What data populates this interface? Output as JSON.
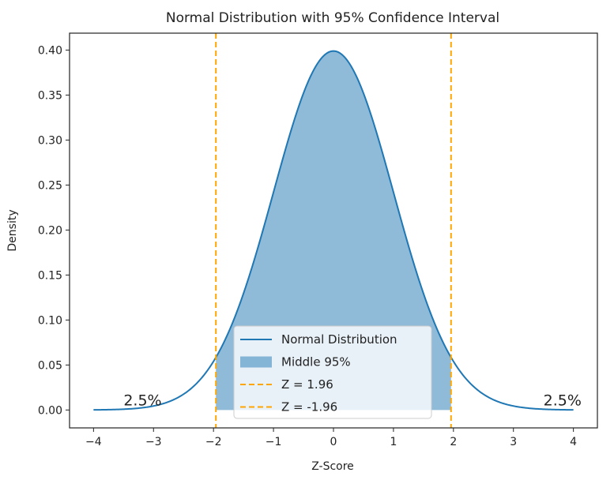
{
  "chart_data": {
    "type": "line",
    "title": "Normal Distribution with 95% Confidence Interval",
    "xlabel": "Z-Score",
    "ylabel": "Density",
    "xlim": [
      -4.4,
      4.4
    ],
    "ylim": [
      -0.0199,
      0.4188
    ],
    "grid": false,
    "x_ticks": [
      -4,
      -3,
      -2,
      -1,
      0,
      1,
      2,
      3,
      4
    ],
    "x_tick_labels": [
      "−4",
      "−3",
      "−2",
      "−1",
      "0",
      "1",
      "2",
      "3",
      "4"
    ],
    "y_ticks": [
      0,
      0.05,
      0.1,
      0.15,
      0.2,
      0.25,
      0.3,
      0.35,
      0.4
    ],
    "y_tick_labels": [
      "0.00",
      "0.05",
      "0.10",
      "0.15",
      "0.20",
      "0.25",
      "0.30",
      "0.35",
      "0.40"
    ],
    "series": [
      {
        "name": "Normal Distribution",
        "kind": "line",
        "function": "standard normal pdf",
        "x_range": [
          -4,
          4
        ],
        "color": "#1f77b4"
      },
      {
        "name": "Middle 95%",
        "kind": "fill",
        "x_range": [
          -1.96,
          1.96
        ],
        "color": "#1f77b4",
        "alpha": 0.5
      },
      {
        "name": "Z = 1.96",
        "kind": "vline",
        "x": 1.96,
        "color": "#ffa500",
        "style": "dashed"
      },
      {
        "name": "Z = -1.96",
        "kind": "vline",
        "x": -1.96,
        "color": "#ffa500",
        "style": "dashed"
      }
    ],
    "annotations": [
      {
        "text": "2.5%",
        "x": -3.5,
        "y": 0.005
      },
      {
        "text": "2.5%",
        "x": 3.5,
        "y": 0.005
      }
    ],
    "legend_position": "lower-center"
  }
}
